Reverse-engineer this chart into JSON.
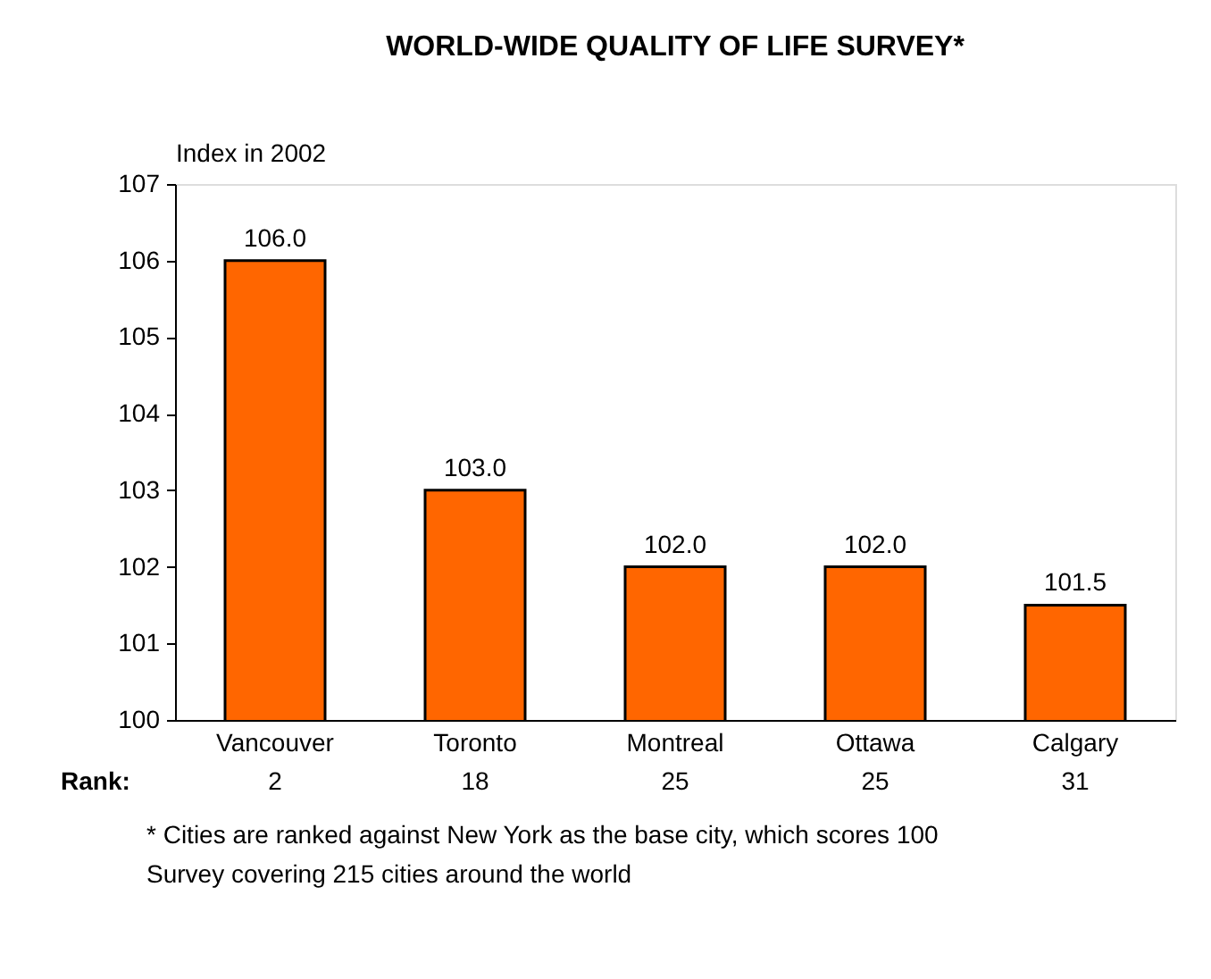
{
  "chart_data": {
    "type": "bar",
    "title": "WORLD-WIDE QUALITY OF LIFE SURVEY*",
    "ylabel": "Index in 2002",
    "categories": [
      "Vancouver",
      "Toronto",
      "Montreal",
      "Ottawa",
      "Calgary"
    ],
    "values": [
      106.0,
      103.0,
      102.0,
      102.0,
      101.5
    ],
    "color": "#ff6600",
    "value_labels": [
      "106.0",
      "103.0",
      "102.0",
      "102.0",
      "101.5"
    ],
    "ylim": [
      100,
      107
    ],
    "yticks": [
      100,
      101,
      102,
      103,
      104,
      105,
      106,
      107
    ],
    "grid": false,
    "annotations": [
      "Rank:",
      "2",
      "18",
      "25",
      "25",
      "31",
      "* Cities are ranked against New York as the base city, which scores 100",
      "Survey covering 215 cities around the world"
    ]
  }
}
